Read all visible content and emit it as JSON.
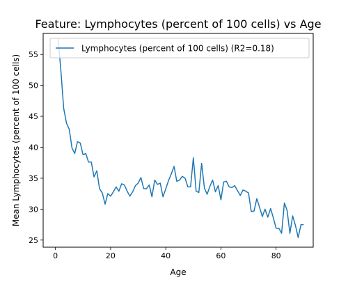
{
  "chart_data": {
    "type": "line",
    "title": "Feature: Lymphocytes (percent of 100 cells) vs Age",
    "xlabel": "Age",
    "ylabel": "Mean Lymphocytes (percent of 100 cells)",
    "xlim": [
      -4.45,
      93.45
    ],
    "ylim": [
      23.85,
      58.4
    ],
    "xticks": [
      0,
      20,
      40,
      60,
      80
    ],
    "yticks": [
      25,
      30,
      35,
      40,
      45,
      50,
      55
    ],
    "grid": false,
    "legend_position": "upper-left",
    "series": [
      {
        "name": "Lymphocytes (percent of 100 cells) (R2=0.18)",
        "color": "#1f77b4",
        "x": [
          1,
          2,
          3,
          4,
          5,
          6,
          7,
          8,
          9,
          10,
          11,
          12,
          13,
          14,
          15,
          16,
          17,
          18,
          19,
          20,
          21,
          22,
          23,
          24,
          25,
          26,
          27,
          28,
          29,
          30,
          31,
          32,
          33,
          34,
          35,
          36,
          37,
          38,
          39,
          40,
          41,
          42,
          43,
          44,
          45,
          46,
          47,
          48,
          49,
          50,
          51,
          52,
          53,
          54,
          55,
          56,
          57,
          58,
          59,
          60,
          61,
          62,
          63,
          64,
          65,
          66,
          67,
          68,
          69,
          70,
          71,
          72,
          73,
          74,
          75,
          76,
          77,
          78,
          79,
          80,
          81,
          82,
          83,
          84,
          85,
          86,
          87,
          88,
          89,
          90
        ],
        "y": [
          57.5,
          52.2,
          46.3,
          43.9,
          42.9,
          39.9,
          39.0,
          40.9,
          40.7,
          38.8,
          39.0,
          37.6,
          37.6,
          35.2,
          36.2,
          33.3,
          32.6,
          30.8,
          32.5,
          32.1,
          32.8,
          33.6,
          32.9,
          34.1,
          33.9,
          32.9,
          32.1,
          32.8,
          33.8,
          34.2,
          35.1,
          33.3,
          33.3,
          33.9,
          32.0,
          34.7,
          34.0,
          34.2,
          32.0,
          33.3,
          34.6,
          35.7,
          36.9,
          34.5,
          34.7,
          35.3,
          35.0,
          33.6,
          33.6,
          38.3,
          32.9,
          32.7,
          37.4,
          33.4,
          32.4,
          33.7,
          34.7,
          32.8,
          33.8,
          31.5,
          34.4,
          34.5,
          33.6,
          33.5,
          33.8,
          33.0,
          32.2,
          33.1,
          32.9,
          32.6,
          29.6,
          29.7,
          31.7,
          30.3,
          28.8,
          30.0,
          28.7,
          30.1,
          28.6,
          26.9,
          26.9,
          26.1,
          31.0,
          29.8,
          26.1,
          28.9,
          27.4,
          25.4,
          27.5,
          27.5
        ]
      }
    ]
  }
}
